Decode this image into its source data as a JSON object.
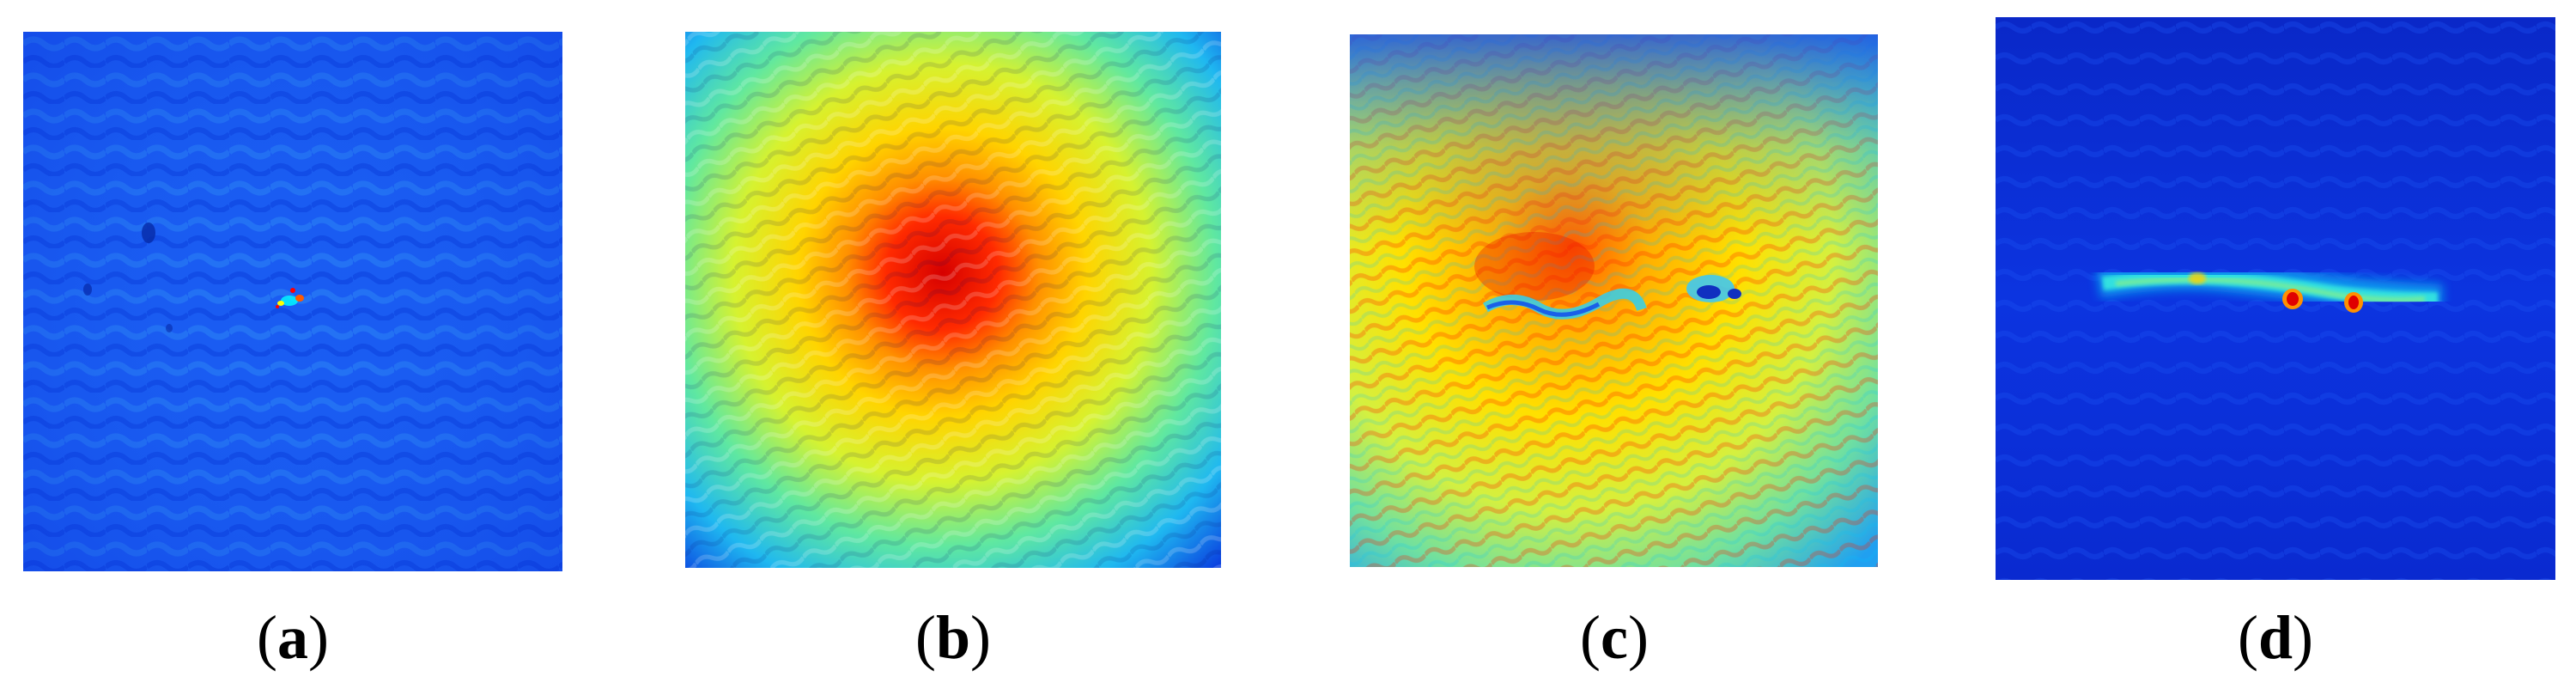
{
  "panels": [
    {
      "id": "a",
      "letter": "a",
      "colormap": "jet",
      "dominant_level": "low",
      "description_hidden": true
    },
    {
      "id": "b",
      "letter": "b",
      "colormap": "jet",
      "dominant_level": "mid-high",
      "description_hidden": true
    },
    {
      "id": "c",
      "letter": "c",
      "colormap": "jet",
      "dominant_level": "mid-high",
      "description_hidden": true
    },
    {
      "id": "d",
      "letter": "d",
      "colormap": "jet",
      "dominant_level": "low",
      "description_hidden": true
    }
  ],
  "captions": {
    "a": {
      "open": "(",
      "letter": "a",
      "close": ")"
    },
    "b": {
      "open": "(",
      "letter": "b",
      "close": ")"
    },
    "c": {
      "open": "(",
      "letter": "c",
      "close": ")"
    },
    "d": {
      "open": "(",
      "letter": "d",
      "close": ")"
    }
  },
  "colors": {
    "jet_low": "#0a3cff",
    "jet_mid": "#ffff00",
    "jet_high": "#ff0000",
    "background": "#ffffff"
  }
}
